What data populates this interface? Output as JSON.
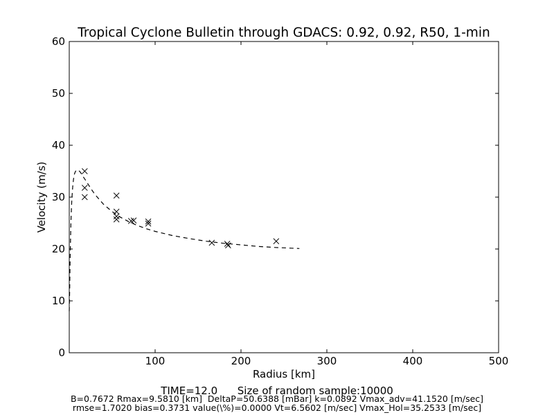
{
  "chart_data": {
    "type": "scatter",
    "title": "Tropical Cyclone Bulletin through GDACS: 0.92, 0.92, R50, 1-min",
    "xlabel": "Radius [km]",
    "ylabel": "Velocity (m/s)",
    "xlim": [
      0,
      500
    ],
    "ylim": [
      0,
      60
    ],
    "x_ticks": [
      100,
      200,
      300,
      400,
      500
    ],
    "y_ticks": [
      0,
      10,
      20,
      30,
      40,
      50,
      60
    ],
    "grid": false,
    "series": [
      {
        "style": "dashed-line",
        "x": [
          0,
          0.5,
          1,
          1.5,
          2,
          3,
          4,
          5,
          6,
          7,
          8,
          9,
          9.58,
          11,
          13,
          16,
          20,
          25,
          30,
          40,
          50,
          60,
          70,
          80,
          90,
          100,
          120,
          140,
          160,
          180,
          200,
          220,
          240,
          268
        ],
        "y": [
          8.0,
          12.0,
          18.0,
          22.0,
          25.5,
          29.5,
          32.0,
          33.5,
          34.4,
          34.9,
          35.1,
          35.2,
          35.25,
          35.15,
          34.8,
          34.0,
          33.0,
          31.7,
          30.5,
          28.6,
          27.2,
          26.1,
          25.2,
          24.5,
          23.9,
          23.4,
          22.6,
          22.0,
          21.5,
          21.1,
          20.8,
          20.5,
          20.3,
          20.1
        ]
      },
      {
        "style": "x-markers",
        "x": [
          18,
          18,
          18,
          55,
          55,
          55,
          55,
          72,
          75,
          92,
          92,
          166,
          184,
          185,
          241
        ],
        "y": [
          35.0,
          31.8,
          30.0,
          30.3,
          27.2,
          26.3,
          25.7,
          25.4,
          25.5,
          25.3,
          24.9,
          21.2,
          21.0,
          20.7,
          21.5
        ]
      }
    ]
  },
  "footer": {
    "line1": "TIME=12.0      Size of random sample:10000",
    "line2": "B=0.7672 Rmax=9.5810 [km]  DeltaP=50.6388 [mBar] k=0.0892 Vmax_adv=41.1520 [m/sec]",
    "line3": "rmse=1.7020 bias=0.3731 value(\\%)=0.0000 Vt=6.5602 [m/sec] Vmax_Hol=35.2533 [m/sec]"
  }
}
